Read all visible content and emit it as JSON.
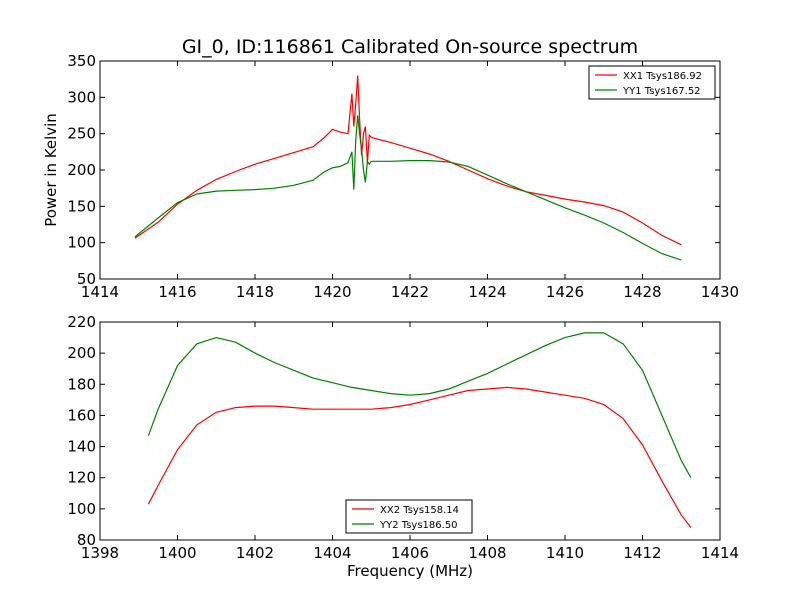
{
  "figure": {
    "title": "GI_0, ID:116861 Calibrated On-source spectrum"
  },
  "chart_data": [
    {
      "type": "line",
      "title": "GI_0, ID:116861 Calibrated On-source spectrum",
      "xlabel": "",
      "ylabel": "Power in Kelvin",
      "xlim": [
        1414,
        1430
      ],
      "ylim": [
        50,
        350
      ],
      "xticks": [
        1414,
        1416,
        1418,
        1420,
        1422,
        1424,
        1426,
        1428,
        1430
      ],
      "yticks": [
        50,
        100,
        150,
        200,
        250,
        300,
        350
      ],
      "legend": "top-right",
      "grid": false,
      "series": [
        {
          "name": "XX1 Tsys186.92",
          "color": "#ff0000",
          "x": [
            1414.9,
            1415.5,
            1416.0,
            1416.5,
            1417.0,
            1417.5,
            1418.0,
            1418.5,
            1419.0,
            1419.5,
            1419.8,
            1420.0,
            1420.2,
            1420.4,
            1420.5,
            1420.55,
            1420.6,
            1420.65,
            1420.7,
            1420.75,
            1420.8,
            1420.85,
            1420.9,
            1420.95,
            1421.0,
            1421.2,
            1421.5,
            1422.0,
            1422.5,
            1423.0,
            1423.5,
            1424.0,
            1424.5,
            1425.0,
            1425.5,
            1426.0,
            1426.5,
            1427.0,
            1427.5,
            1428.0,
            1428.5,
            1429.0
          ],
          "y": [
            106,
            128,
            153,
            172,
            187,
            198,
            208,
            216,
            224,
            232,
            245,
            256,
            252,
            250,
            305,
            260,
            290,
            330,
            270,
            220,
            250,
            260,
            210,
            248,
            245,
            242,
            238,
            230,
            222,
            212,
            200,
            188,
            178,
            170,
            165,
            160,
            156,
            151,
            142,
            127,
            110,
            97
          ]
        },
        {
          "name": "YY1 Tsys167.52",
          "color": "#008000",
          "x": [
            1414.9,
            1415.5,
            1416.0,
            1416.5,
            1417.0,
            1417.5,
            1418.0,
            1418.5,
            1419.0,
            1419.5,
            1419.8,
            1420.0,
            1420.2,
            1420.4,
            1420.5,
            1420.55,
            1420.6,
            1420.65,
            1420.7,
            1420.75,
            1420.8,
            1420.85,
            1420.9,
            1420.95,
            1421.0,
            1421.5,
            1422.0,
            1422.5,
            1423.0,
            1423.5,
            1424.0,
            1424.5,
            1425.0,
            1425.5,
            1426.0,
            1426.5,
            1427.0,
            1427.5,
            1428.0,
            1428.5,
            1429.0
          ],
          "y": [
            108,
            134,
            155,
            167,
            171,
            172,
            173,
            175,
            179,
            186,
            198,
            203,
            205,
            210,
            225,
            173,
            240,
            275,
            250,
            228,
            200,
            183,
            212,
            208,
            212,
            212,
            213,
            213,
            211,
            205,
            193,
            181,
            170,
            159,
            148,
            138,
            127,
            114,
            99,
            85,
            76
          ]
        }
      ]
    },
    {
      "type": "line",
      "title": "",
      "xlabel": "Frequency (MHz)",
      "ylabel": "",
      "xlim": [
        1398,
        1414
      ],
      "ylim": [
        80,
        220
      ],
      "xticks": [
        1398,
        1400,
        1402,
        1404,
        1406,
        1408,
        1410,
        1412,
        1414
      ],
      "yticks": [
        80,
        100,
        120,
        140,
        160,
        180,
        200,
        220
      ],
      "legend": "bottom-center",
      "grid": false,
      "series": [
        {
          "name": "XX2 Tsys158.14",
          "color": "#ff0000",
          "x": [
            1399.25,
            1399.5,
            1400.0,
            1400.5,
            1401.0,
            1401.5,
            1402.0,
            1402.5,
            1403.0,
            1403.5,
            1404.0,
            1404.5,
            1405.0,
            1405.5,
            1406.0,
            1406.5,
            1407.0,
            1407.5,
            1408.0,
            1408.5,
            1409.0,
            1409.5,
            1410.0,
            1410.5,
            1411.0,
            1411.5,
            1412.0,
            1412.5,
            1413.0,
            1413.25
          ],
          "y": [
            103,
            115,
            138,
            154,
            162,
            165,
            166,
            166,
            165,
            164,
            164,
            164,
            164,
            165,
            167,
            170,
            173,
            176,
            177,
            178,
            177,
            175,
            173,
            171,
            167,
            158,
            141,
            118,
            96,
            88
          ]
        },
        {
          "name": "YY2 Tsys186.50",
          "color": "#008000",
          "x": [
            1399.25,
            1399.5,
            1400.0,
            1400.5,
            1401.0,
            1401.5,
            1402.0,
            1402.5,
            1403.0,
            1403.5,
            1404.0,
            1404.5,
            1405.0,
            1405.5,
            1406.0,
            1406.5,
            1407.0,
            1407.5,
            1408.0,
            1408.5,
            1409.0,
            1409.5,
            1410.0,
            1410.5,
            1411.0,
            1411.5,
            1412.0,
            1412.5,
            1413.0,
            1413.25
          ],
          "y": [
            147,
            164,
            192,
            206,
            210,
            207,
            200,
            194,
            189,
            184,
            181,
            178,
            176,
            174,
            173,
            174,
            177,
            182,
            187,
            193,
            199,
            205,
            210,
            213,
            213,
            206,
            189,
            160,
            131,
            120
          ]
        }
      ]
    }
  ]
}
